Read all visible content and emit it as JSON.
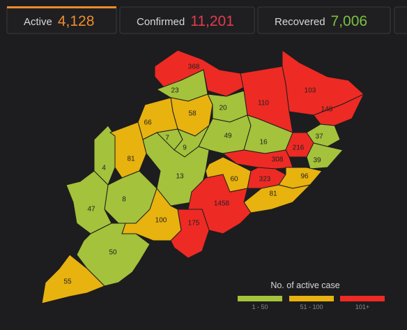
{
  "tabs": [
    {
      "label": "Active",
      "value": "4,128",
      "color": "#f08c2a"
    },
    {
      "label": "Confirmed",
      "value": "11,201",
      "color": "#e23b4e"
    },
    {
      "label": "Recovered",
      "value": "7,006",
      "color": "#7cc043"
    }
  ],
  "districts": [
    {
      "label": "368",
      "color": "#ee2a24"
    },
    {
      "label": "23",
      "color": "#a4c23b"
    },
    {
      "label": "58",
      "color": "#e8b20f"
    },
    {
      "label": "20",
      "color": "#a4c23b"
    },
    {
      "label": "110",
      "color": "#ee2a24"
    },
    {
      "label": "103",
      "color": "#ee2a24"
    },
    {
      "label": "148",
      "color": "#ee2a24"
    },
    {
      "label": "66",
      "color": "#e8b20f"
    },
    {
      "label": "7",
      "color": "#a4c23b"
    },
    {
      "label": "9",
      "color": "#a4c23b"
    },
    {
      "label": "49",
      "color": "#a4c23b"
    },
    {
      "label": "16",
      "color": "#a4c23b"
    },
    {
      "label": "37",
      "color": "#a4c23b"
    },
    {
      "label": "216",
      "color": "#ee2a24"
    },
    {
      "label": "39",
      "color": "#a4c23b"
    },
    {
      "label": "4",
      "color": "#a4c23b"
    },
    {
      "label": "81",
      "color": "#e8b20f"
    },
    {
      "label": "13",
      "color": "#a4c23b"
    },
    {
      "label": "308",
      "color": "#ee2a24"
    },
    {
      "label": "60",
      "color": "#e8b20f"
    },
    {
      "label": "323",
      "color": "#ee2a24"
    },
    {
      "label": "96",
      "color": "#e8b20f"
    },
    {
      "label": "81",
      "color": "#e8b20f"
    },
    {
      "label": "8",
      "color": "#a4c23b"
    },
    {
      "label": "47",
      "color": "#a4c23b"
    },
    {
      "label": "1458",
      "color": "#ee2a24"
    },
    {
      "label": "100",
      "color": "#e8b20f"
    },
    {
      "label": "175",
      "color": "#ee2a24"
    },
    {
      "label": "50",
      "color": "#a4c23b"
    },
    {
      "label": "55",
      "color": "#e8b20f"
    }
  ],
  "legend": {
    "title": "No. of active case",
    "items": [
      {
        "label": "1 - 50",
        "color": "#a4c23b"
      },
      {
        "label": "51 - 100",
        "color": "#e8b20f"
      },
      {
        "label": "101+",
        "color": "#ee2a24"
      }
    ]
  }
}
